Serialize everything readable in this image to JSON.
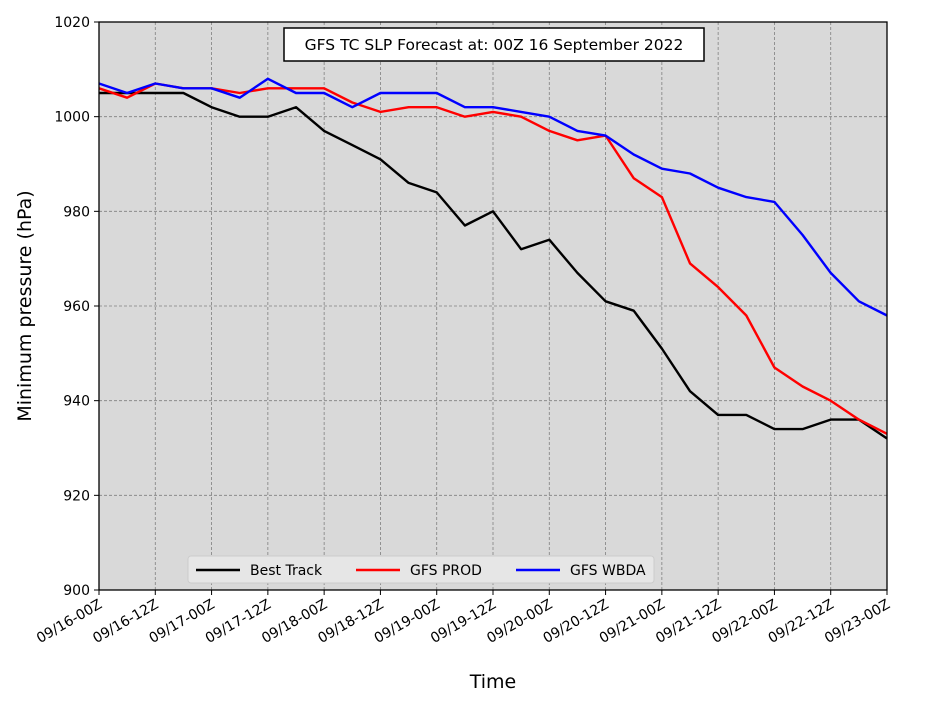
{
  "chart_data": {
    "type": "line",
    "title": "GFS TC SLP Forecast at: 00Z 16 September 2022",
    "xlabel": "Time",
    "ylabel": "Minimum pressure (hPa)",
    "ylim": [
      900,
      1020
    ],
    "yticks": [
      900,
      920,
      940,
      960,
      980,
      1000,
      1020
    ],
    "x_tick_labels": [
      "09/16-00Z",
      "09/16-12Z",
      "09/17-00Z",
      "09/17-12Z",
      "09/18-00Z",
      "09/18-12Z",
      "09/19-00Z",
      "09/19-12Z",
      "09/20-00Z",
      "09/20-12Z",
      "09/21-00Z",
      "09/21-12Z",
      "09/22-00Z",
      "09/22-12Z",
      "09/23-00Z"
    ],
    "x": [
      "09/16-00Z",
      "09/16-06Z",
      "09/16-12Z",
      "09/16-18Z",
      "09/17-00Z",
      "09/17-06Z",
      "09/17-12Z",
      "09/17-18Z",
      "09/18-00Z",
      "09/18-06Z",
      "09/18-12Z",
      "09/18-18Z",
      "09/19-00Z",
      "09/19-06Z",
      "09/19-12Z",
      "09/19-18Z",
      "09/20-00Z",
      "09/20-06Z",
      "09/20-12Z",
      "09/20-18Z",
      "09/21-00Z",
      "09/21-06Z",
      "09/21-12Z",
      "09/21-18Z",
      "09/22-00Z",
      "09/22-06Z",
      "09/22-12Z",
      "09/22-18Z",
      "09/23-00Z"
    ],
    "grid": true,
    "legend_position": "bottom-center",
    "plot_background": "#d9d9d9",
    "series": [
      {
        "name": "Best Track",
        "color": "#000000",
        "values": [
          1005,
          1005,
          1005,
          1005,
          1002,
          1000,
          1000,
          1002,
          997,
          994,
          991,
          986,
          984,
          977,
          980,
          972,
          974,
          967,
          961,
          959,
          951,
          942,
          937,
          937,
          934,
          934,
          936,
          936,
          932
        ]
      },
      {
        "name": "GFS PROD",
        "color": "#ff0000",
        "values": [
          1006,
          1004,
          1007,
          1006,
          1006,
          1005,
          1006,
          1006,
          1006,
          1003,
          1001,
          1002,
          1002,
          1000,
          1001,
          1000,
          997,
          995,
          996,
          987,
          983,
          969,
          964,
          958,
          947,
          943,
          940,
          936,
          933
        ]
      },
      {
        "name": "GFS WBDA",
        "color": "#0000ff",
        "values": [
          1007,
          1005,
          1007,
          1006,
          1006,
          1004,
          1008,
          1005,
          1005,
          1002,
          1005,
          1005,
          1005,
          1002,
          1002,
          1001,
          1000,
          997,
          996,
          992,
          989,
          988,
          985,
          983,
          982,
          975,
          967,
          961,
          958
        ]
      }
    ]
  }
}
